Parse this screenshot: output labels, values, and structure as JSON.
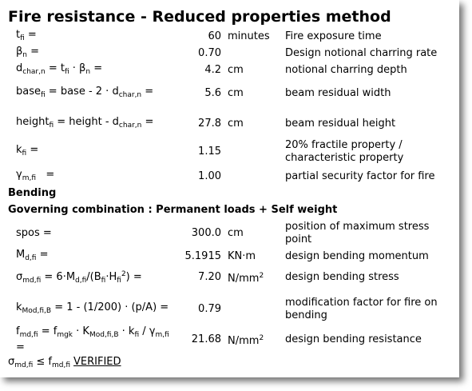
{
  "title": "Fire resistance - Reduced properties method",
  "rows": [
    {
      "formula": [
        {
          "text": "t"
        },
        {
          "sub": "fi"
        },
        {
          "text": " ="
        }
      ],
      "value": "60",
      "unit": "minutes",
      "description": "Fire exposure time"
    },
    {
      "formula": [
        {
          "text": "β"
        },
        {
          "sub": "n"
        },
        {
          "text": " ="
        }
      ],
      "value": "0.70",
      "description": "Design notional charring rate"
    },
    {
      "formula": [
        {
          "text": "d"
        },
        {
          "sub": "char,n"
        },
        {
          "text": " = t"
        },
        {
          "sub": "fi"
        },
        {
          "text": " · β"
        },
        {
          "sub": "n"
        },
        {
          "text": " ="
        }
      ],
      "value": "4.2",
      "unit": "cm",
      "description": "notional charring depth"
    },
    {
      "formula": [
        {
          "text": "base"
        },
        {
          "sub": "fi"
        },
        {
          "text": " = base - 2 · d"
        },
        {
          "sub": "char,n"
        },
        {
          "text": " ="
        }
      ],
      "value": "5.6",
      "unit": "cm",
      "description": "beam residual width"
    },
    {
      "formula": [
        {
          "text": "height"
        },
        {
          "sub": "fi"
        },
        {
          "text": " = height - d"
        },
        {
          "sub": "char,n"
        },
        {
          "text": " ="
        }
      ],
      "value": "27.8",
      "unit": "cm",
      "description": "beam residual height"
    },
    {
      "formula": [
        {
          "text": "k"
        },
        {
          "sub": "fi"
        },
        {
          "text": " ="
        }
      ],
      "value": "1.15",
      "description": "20% fractile property / characteristic property"
    },
    {
      "formula": [
        {
          "text": "γ"
        },
        {
          "sub": "m,fi"
        },
        {
          "text": "   ="
        }
      ],
      "value": "1.00",
      "description": "partial security factor for fire"
    },
    {
      "heading": "Bending"
    },
    {
      "heading": "Governing combination : Permanent loads + Self weight"
    },
    {
      "formula": [
        {
          "text": "spos ="
        }
      ],
      "value": "300.0",
      "unit": "cm",
      "description": "position of maximum stress point"
    },
    {
      "formula": [
        {
          "text": "M"
        },
        {
          "sub": "d,fi"
        },
        {
          "text": " ="
        }
      ],
      "value": "5.1915",
      "unit": "KN·m",
      "description": "design bending momentum"
    },
    {
      "formula": [
        {
          "text": "σ"
        },
        {
          "sub": "md,fi"
        },
        {
          "text": " = 6·M"
        },
        {
          "sub": "d,fi"
        },
        {
          "text": "/(B"
        },
        {
          "sub": "fi"
        },
        {
          "text": "·H"
        },
        {
          "sub": "fi"
        },
        {
          "sup": "2"
        },
        {
          "text": ") ="
        }
      ],
      "value": "7.20",
      "unit": [
        {
          "text": "N/mm"
        },
        {
          "sup": "2"
        }
      ],
      "description": "design bending stress"
    },
    {
      "formula": [
        {
          "text": "k"
        },
        {
          "sub": "Mod,fi,B"
        },
        {
          "text": " = 1 - (1/200) · (p/A) ="
        }
      ],
      "value": "0.79",
      "description": "modification factor for fire on bending"
    },
    {
      "formula": [
        {
          "text": "f"
        },
        {
          "sub": "md,fi"
        },
        {
          "text": " = f"
        },
        {
          "sub": "mgk"
        },
        {
          "text": " · K"
        },
        {
          "sub": "Mod,fi,B"
        },
        {
          "text": " · k"
        },
        {
          "sub": "fi"
        },
        {
          "text": " / γ"
        },
        {
          "sub": "m,fi"
        },
        {
          "text": " ="
        }
      ],
      "value": "21.68",
      "unit": [
        {
          "text": "N/mm"
        },
        {
          "sup": "2"
        }
      ],
      "description": "design bending resistance"
    }
  ],
  "verdict": [
    {
      "text": "σ"
    },
    {
      "sub": "md,fi"
    },
    {
      "text": " ≤ f"
    },
    {
      "sub": "md,fi"
    },
    {
      "u": "VERIFIED"
    }
  ]
}
